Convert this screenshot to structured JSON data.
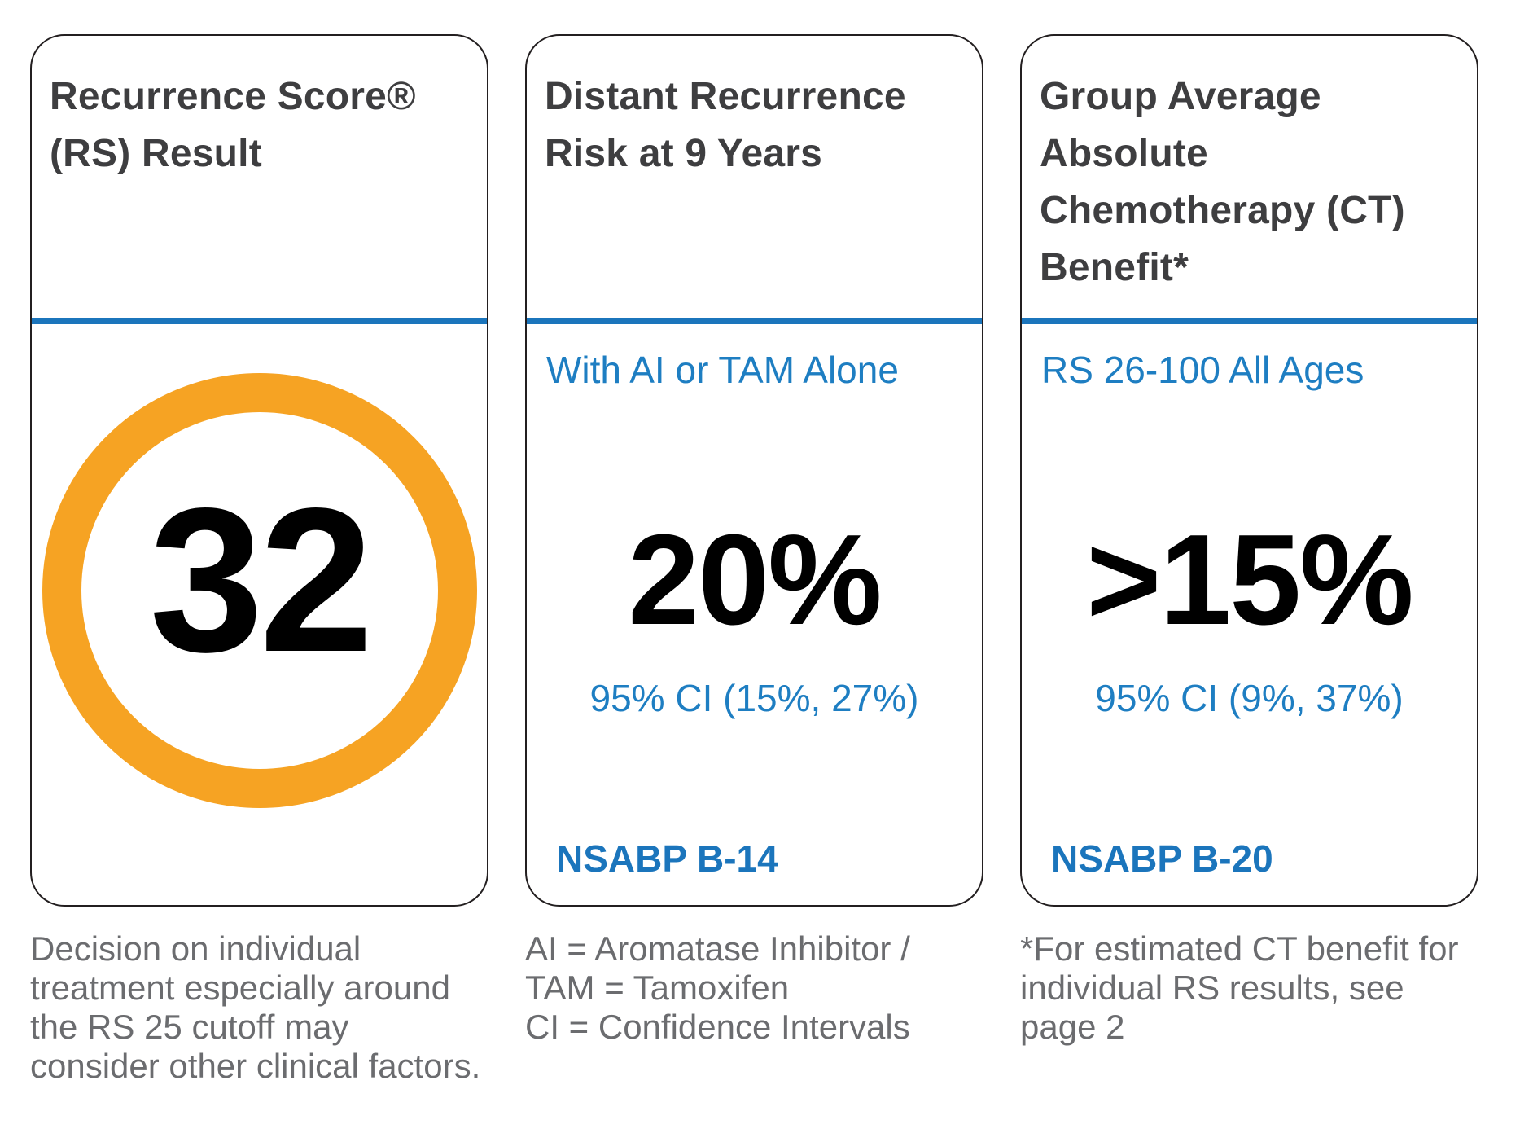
{
  "colors": {
    "accent_blue": "#1b75bc",
    "blue_text": "#1e7ec2",
    "orange_ring": "#f6a323",
    "title_dark": "#3e3e40",
    "footnote_gray": "#6b6c6f",
    "value_black": "#000000"
  },
  "cards": [
    {
      "title_lines": [
        "Recurrence Score®",
        "(RS) Result"
      ],
      "score": "32",
      "footnote_lines": [
        "Decision on individual",
        "treatment especially around",
        "the RS 25 cutoff may",
        "consider other clinical factors."
      ]
    },
    {
      "title_lines": [
        "Distant Recurrence",
        "Risk at 9 Years"
      ],
      "subheader": "With AI or TAM Alone",
      "big_value": "20%",
      "ci": "95% CI (15%, 27%)",
      "study": "NSABP B-14",
      "footnote_lines": [
        "AI = Aromatase Inhibitor /",
        "TAM = Tamoxifen",
        "CI = Confidence Intervals"
      ]
    },
    {
      "title_lines": [
        "Group Average",
        "Absolute",
        "Chemotherapy (CT)",
        "Benefit*"
      ],
      "subheader": "RS 26-100 All Ages",
      "big_value": ">15%",
      "ci": "95% CI (9%, 37%)",
      "study": "NSABP B-20",
      "footnote_lines": [
        "*For estimated CT benefit for",
        "individual RS results, see",
        "page 2"
      ]
    }
  ]
}
